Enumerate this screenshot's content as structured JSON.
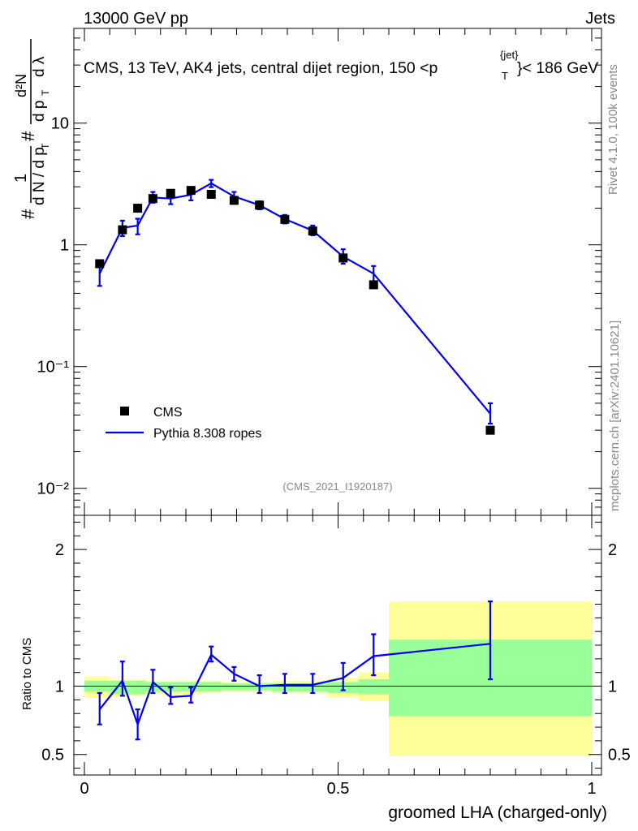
{
  "header": {
    "energy": "13000 GeV pp",
    "category": "Jets",
    "title": "CMS, 13 TeV, AK4 jets, central dijet region, 150 <p",
    "title_sup": "{jet}",
    "title_sub": "T",
    "title_end": "}< 186 GeV",
    "analysis_id": "(CMS_2021_I1920187)",
    "rivet_label": "Rivet 4.1.0,  100k events",
    "mcplots_label": "mcplots.cern.ch [arXiv:2401.10621]"
  },
  "main_ylabel": {
    "hash1": "#",
    "one": "1",
    "dN": "d N / d p",
    "T1": "T",
    "hash2": "#",
    "d2N": "d²N",
    "dp": "d p",
    "T2": "T",
    "dlambda": "d λ"
  },
  "chart_data": [
    {
      "type": "scatter",
      "panel": "main",
      "yscale": "log",
      "xlim": [
        0,
        1
      ],
      "ylim": [
        0.006,
        60
      ],
      "ytick_labels": [
        "10⁻²",
        "10⁻¹",
        "1",
        "10"
      ],
      "ytick_values": [
        0.01,
        0.1,
        1,
        10
      ],
      "xlabel": "groomed LHA (charged-only)",
      "legend": {
        "placement": "bottom-left",
        "entries": [
          "CMS",
          "Pythia 8.308 ropes"
        ]
      },
      "series": [
        {
          "name": "CMS",
          "style": "black-square",
          "x": [
            0.03,
            0.075,
            0.105,
            0.135,
            0.17,
            0.21,
            0.25,
            0.295,
            0.345,
            0.395,
            0.45,
            0.51,
            0.57,
            0.8
          ],
          "y": [
            0.7,
            1.33,
            2.0,
            2.4,
            2.65,
            2.8,
            2.6,
            2.32,
            2.12,
            1.62,
            1.3,
            0.78,
            0.47,
            0.03
          ]
        },
        {
          "name": "Pythia 8.308 ropes",
          "style": "blue-line",
          "color": "#0000ee",
          "x": [
            0.03,
            0.075,
            0.105,
            0.135,
            0.17,
            0.21,
            0.25,
            0.295,
            0.345,
            0.395,
            0.45,
            0.51,
            0.57,
            0.8
          ],
          "y": [
            0.58,
            1.38,
            1.44,
            2.45,
            2.4,
            2.58,
            3.2,
            2.5,
            2.12,
            1.63,
            1.31,
            0.8,
            0.58,
            0.041
          ],
          "yerr_lo": [
            0.46,
            1.18,
            1.22,
            2.22,
            2.16,
            2.32,
            2.98,
            2.3,
            1.96,
            1.5,
            1.2,
            0.7,
            0.5,
            0.034
          ],
          "yerr_hi": [
            0.68,
            1.58,
            1.64,
            2.72,
            2.64,
            2.84,
            3.42,
            2.72,
            2.28,
            1.76,
            1.44,
            0.92,
            0.67,
            0.05
          ]
        }
      ]
    },
    {
      "type": "line",
      "panel": "ratio",
      "yscale": "linear",
      "xlim": [
        0,
        1
      ],
      "ylim": [
        0.35,
        2.25
      ],
      "ylabel": "Ratio to CMS",
      "ytick_labels": [
        "0.5",
        "1",
        "2"
      ],
      "ytick_values": [
        0.5,
        1,
        2
      ],
      "xtick_labels": [
        "0",
        "0.5",
        "1"
      ],
      "xtick_values": [
        0,
        0.5,
        1
      ],
      "reference_line": 1,
      "bands": {
        "edges": [
          0,
          0.05,
          0.09,
          0.12,
          0.15,
          0.19,
          0.23,
          0.27,
          0.32,
          0.37,
          0.42,
          0.48,
          0.54,
          0.6,
          1.0
        ],
        "inner": {
          "color": "#99ff99",
          "lo": [
            0.96,
            0.94,
            0.94,
            0.96,
            0.96,
            0.96,
            0.96,
            0.97,
            0.97,
            0.96,
            0.96,
            0.95,
            0.94,
            0.78
          ],
          "hi": [
            1.04,
            1.04,
            1.04,
            1.03,
            1.03,
            1.03,
            1.03,
            1.02,
            1.02,
            1.02,
            1.02,
            1.03,
            1.05,
            1.34
          ]
        },
        "outer": {
          "color": "#ffff99",
          "lo": [
            0.92,
            0.92,
            0.93,
            0.94,
            0.94,
            0.94,
            0.95,
            0.96,
            0.96,
            0.95,
            0.95,
            0.92,
            0.89,
            0.49
          ],
          "hi": [
            1.07,
            1.05,
            1.05,
            1.04,
            1.04,
            1.04,
            1.04,
            1.03,
            1.03,
            1.04,
            1.04,
            1.06,
            1.1,
            1.62
          ]
        }
      },
      "series": [
        {
          "name": "Pythia 8.308 ropes / CMS",
          "color": "#0000ee",
          "x": [
            0.03,
            0.075,
            0.105,
            0.135,
            0.17,
            0.21,
            0.25,
            0.295,
            0.345,
            0.395,
            0.45,
            0.51,
            0.57,
            0.8
          ],
          "y": [
            0.83,
            1.04,
            0.72,
            1.03,
            0.92,
            0.93,
            1.23,
            1.09,
            1.0,
            1.01,
            1.01,
            1.06,
            1.22,
            1.31
          ],
          "yerr_lo": [
            0.72,
            0.93,
            0.61,
            0.95,
            0.87,
            0.88,
            1.18,
            1.04,
            0.95,
            0.95,
            0.95,
            0.97,
            1.08,
            1.05
          ],
          "yerr_hi": [
            0.95,
            1.18,
            0.83,
            1.12,
            0.99,
            0.99,
            1.29,
            1.14,
            1.08,
            1.09,
            1.09,
            1.17,
            1.38,
            1.62
          ]
        }
      ]
    }
  ]
}
